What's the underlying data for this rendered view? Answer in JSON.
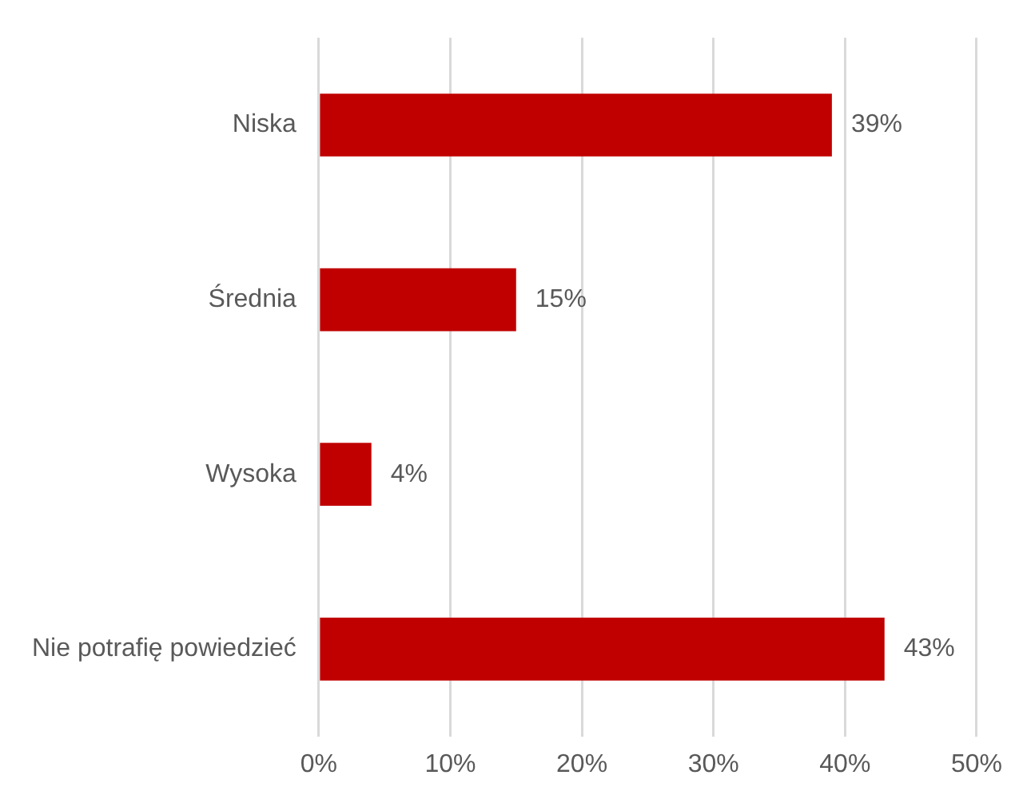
{
  "chart_data": {
    "type": "bar",
    "orientation": "horizontal",
    "categories": [
      "Niska",
      "Średnia",
      "Wysoka",
      "Nie potrafię powiedzieć"
    ],
    "values": [
      39,
      15,
      4,
      43
    ],
    "value_labels": [
      "39%",
      "15%",
      "4%",
      "43%"
    ],
    "color": "#c00000",
    "xlim": [
      0,
      50
    ],
    "xticks": [
      {
        "value": 0,
        "label": "0%"
      },
      {
        "value": 10,
        "label": "10%"
      },
      {
        "value": 20,
        "label": "20%"
      },
      {
        "value": 30,
        "label": "30%"
      },
      {
        "value": 40,
        "label": "40%"
      },
      {
        "value": 50,
        "label": "50%"
      }
    ],
    "grid": "x"
  }
}
